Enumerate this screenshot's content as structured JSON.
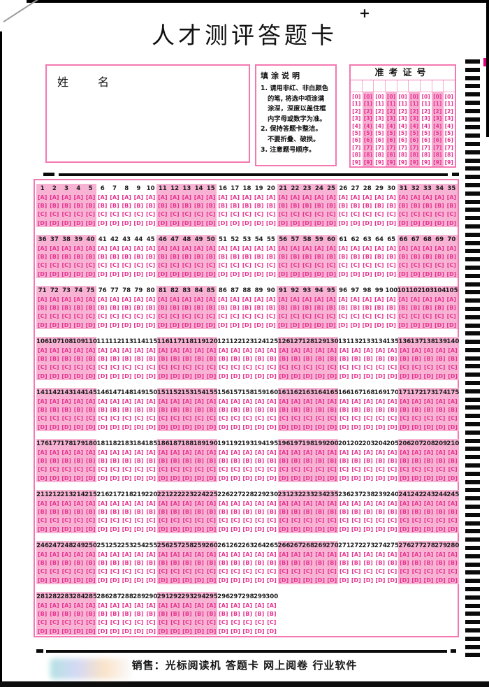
{
  "page": {
    "title": "人才测评答题卡",
    "registration_mark": "+"
  },
  "name_section": {
    "label": "姓名"
  },
  "instructions": {
    "title": "填涂说明",
    "lines": [
      {
        "text": "1. 请用非红、非白颜色",
        "indent": false
      },
      {
        "text": "的笔, 将选中项涂满",
        "indent": true
      },
      {
        "text": "涂深，深度以盖住框",
        "indent": true
      },
      {
        "text": "内字母或数字为准。",
        "indent": true
      },
      {
        "text": "2. 保持答题卡整洁。",
        "indent": false
      },
      {
        "text": "不要折叠、破损。",
        "indent": true
      },
      {
        "text": "3. 注意题号顺序。",
        "indent": false
      }
    ]
  },
  "admission_ticket": {
    "title": "准考证号",
    "column_count": 9,
    "digits": [
      "0",
      "1",
      "2",
      "3",
      "4",
      "5",
      "6",
      "7",
      "8",
      "9"
    ],
    "shaded_column_indexes": [
      1,
      3,
      5,
      7
    ]
  },
  "answer_grid": {
    "options": [
      "A",
      "B",
      "C",
      "D"
    ],
    "group_size": 5,
    "shaded_group_parity": 0,
    "rows": [
      {
        "start": 1,
        "end": 35
      },
      {
        "start": 36,
        "end": 70
      },
      {
        "start": 71,
        "end": 105
      },
      {
        "start": 106,
        "end": 140
      },
      {
        "start": 141,
        "end": 175
      },
      {
        "start": 176,
        "end": 210
      },
      {
        "start": 211,
        "end": 245
      },
      {
        "start": 246,
        "end": 280
      },
      {
        "start": 281,
        "end": 300
      }
    ]
  },
  "footer": {
    "sales_line": "销售：光标阅读机 答题卡 网上阅卷 行业软件"
  },
  "timing_marks": {
    "count": 73
  },
  "colors": {
    "border_pink": "#f577b2",
    "shade_pink": "#f8b2d4",
    "admission_shade_pink": "#f8aed2",
    "bubble_magenta": "#e6328e",
    "mark_black": "#0a0a0a"
  }
}
